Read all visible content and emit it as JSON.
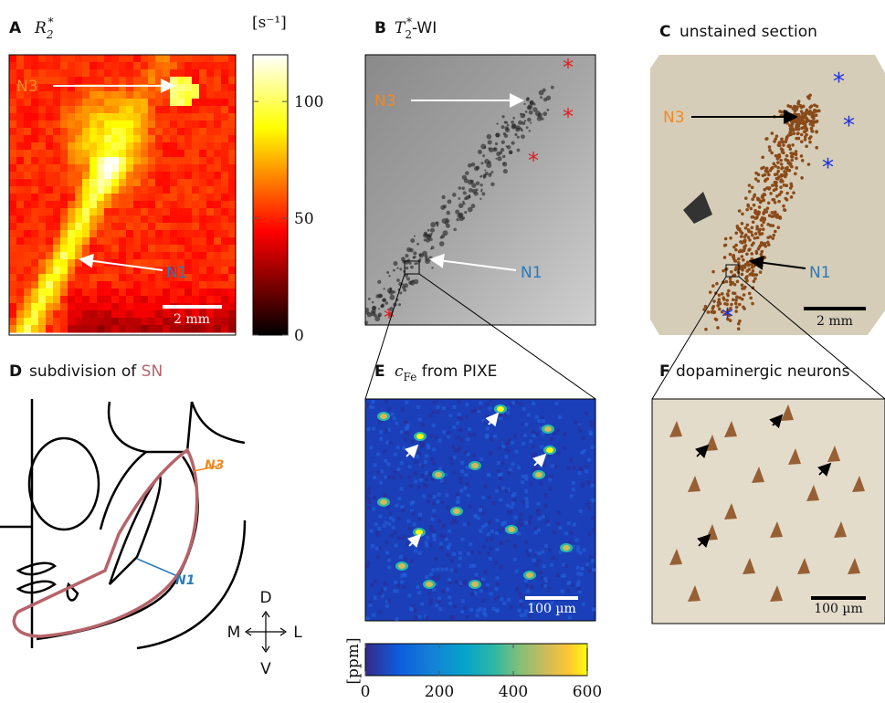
{
  "panels": [
    {
      "letter": "A",
      "symbol": "R",
      "subscript": "2",
      "superscript": "*",
      "annotations": [
        "N3",
        "N1"
      ],
      "scale_bar": "2 mm"
    },
    {
      "letter": "B",
      "symbol": "T",
      "subscript": "2",
      "superscript": "*",
      "title": "-WI",
      "annotations": [
        "N3",
        "N1"
      ]
    },
    {
      "letter": "C",
      "title": "unstained section",
      "annotations": [
        "N3",
        "N1"
      ],
      "scale_bar": "2 mm"
    },
    {
      "letter": "D",
      "title": "subdivision of",
      "highlight": "SN",
      "annotations": [
        "N3",
        "N1"
      ],
      "directions": [
        "D",
        "M",
        "L",
        "V"
      ]
    },
    {
      "letter": "E",
      "symbol": "c",
      "subscript": "Fe",
      "title": "from PIXE",
      "scale_bar": "100 µm"
    },
    {
      "letter": "F",
      "title": "dopaminergic neurons",
      "scale_bar": "100 µm"
    }
  ],
  "colorbars": [
    {
      "unit": "[s⁻¹]",
      "lim": [
        0,
        120
      ],
      "ticks": [
        0,
        50,
        100
      ]
    },
    {
      "unit": "[ppm]",
      "lim": [
        0,
        600
      ],
      "ticks": [
        0,
        200,
        400,
        600
      ]
    }
  ]
}
